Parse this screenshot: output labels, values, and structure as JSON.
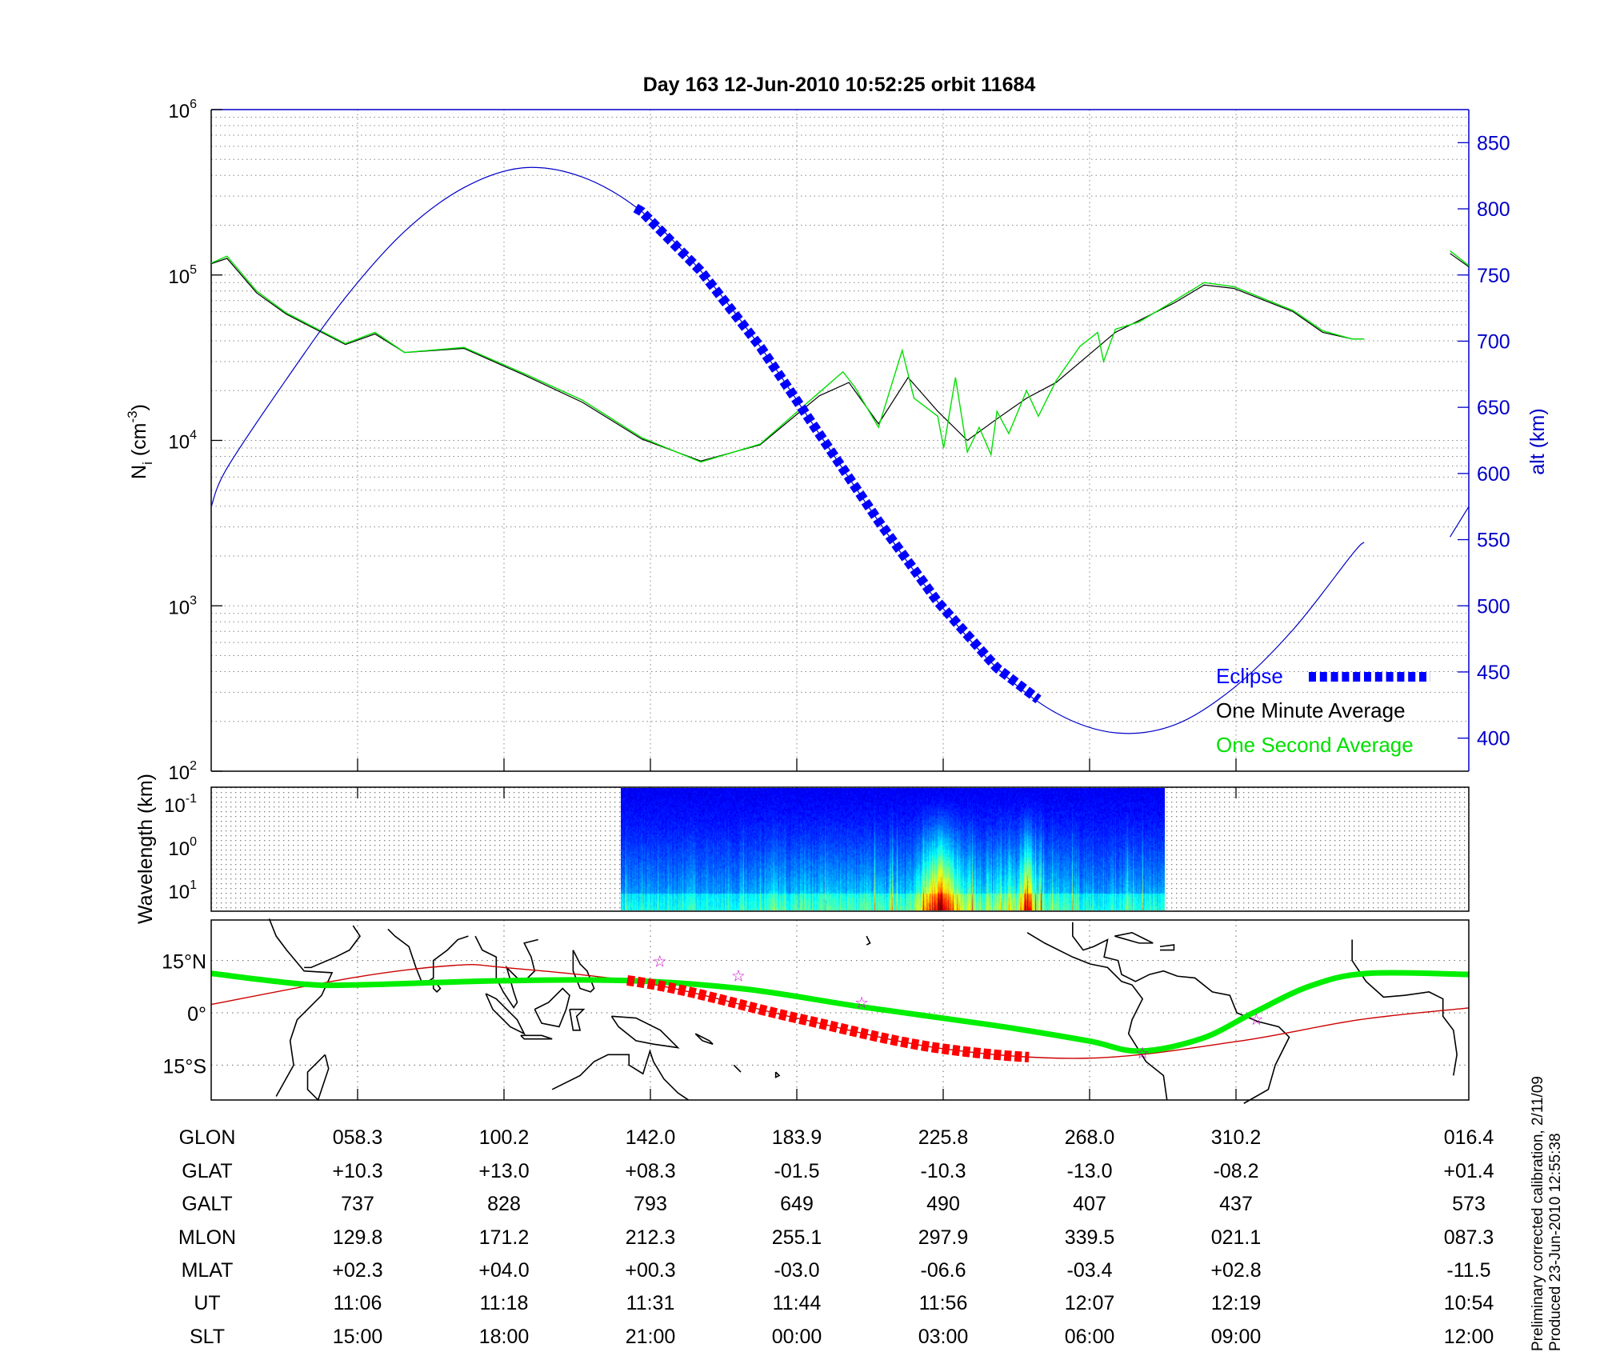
{
  "title": "Day 163  12-Jun-2010 10:52:25   orbit 11684",
  "colors": {
    "altitude": "#0000c8",
    "eclipse": "#0000ff",
    "one_minute": "#000000",
    "one_second": "#00e000",
    "dip_equator": "#00ee00",
    "track": "#cc0000",
    "track_eclipse": "#ff0000",
    "stars": "#cc00cc",
    "alt_axis": "#0000c8"
  },
  "chart_data": [
    {
      "type": "line",
      "title": "Day 163  12-Jun-2010 10:52:25   orbit 11684",
      "x_unit": "UT",
      "x_range": [
        "10:53:40",
        "12:39:50"
      ],
      "ylabel": "N_i (cm^-3)",
      "ylabel_main": "N",
      "ylabel_sub": "i",
      "ylabel_rest": " (cm",
      "ylabel_sup": "-3",
      "ylabel_close": ")",
      "yscale": "log",
      "ylim": [
        100,
        1000000
      ],
      "yticks": [
        {
          "base": "10",
          "exp": "2"
        },
        {
          "base": "10",
          "exp": "3"
        },
        {
          "base": "10",
          "exp": "4"
        },
        {
          "base": "10",
          "exp": "5"
        },
        {
          "base": "10",
          "exp": "6"
        }
      ],
      "y2label": "alt (km)",
      "y2lim": [
        375,
        875
      ],
      "y2ticks": [
        "400",
        "450",
        "500",
        "550",
        "600",
        "650",
        "700",
        "750",
        "800",
        "850"
      ],
      "grid": true,
      "legend_placement": "bottom-right",
      "legend": [
        {
          "label": "Eclipse",
          "color": "#0000ff"
        },
        {
          "label": "One Minute Average",
          "color": "#000000"
        },
        {
          "label": "One Second Average",
          "color": "#00e000"
        }
      ],
      "series": [
        {
          "name": "One Minute Average",
          "axis": "left",
          "segments": [
            [
              [
                "10:53:40",
                117000
              ],
              [
                "10:55:00",
                126000
              ],
              [
                "10:57:30",
                78000
              ],
              [
                "11:00:00",
                58000
              ],
              [
                "11:05:00",
                38000
              ],
              [
                "11:07:30",
                44000
              ],
              [
                "11:10:00",
                34000
              ],
              [
                "11:15:00",
                36000
              ],
              [
                "11:20:00",
                25000
              ],
              [
                "11:25:00",
                17000
              ],
              [
                "11:30:00",
                10200
              ],
              [
                "11:35:00",
                7500
              ],
              [
                "11:40:00",
                9400
              ],
              [
                "11:45:00",
                18600
              ],
              [
                "11:47:30",
                22400
              ],
              [
                "11:50:00",
                12600
              ],
              [
                "11:52:30",
                24000
              ],
              [
                "11:55:00",
                15000
              ],
              [
                "11:57:30",
                10000
              ],
              [
                "12:00:00",
                13500
              ],
              [
                "12:02:30",
                18000
              ],
              [
                "12:05:00",
                22400
              ],
              [
                "12:10:00",
                45000
              ],
              [
                "12:15:00",
                68000
              ],
              [
                "12:17:30",
                87000
              ],
              [
                "12:20:00",
                83000
              ],
              [
                "12:25:00",
                60000
              ],
              [
                "12:27:30",
                45000
              ],
              [
                "12:30:00",
                41000
              ],
              [
                "12:31:00",
                41000
              ]
            ],
            [
              [
                "12:38:15",
                135000
              ],
              [
                "12:39:50",
                112000
              ]
            ]
          ]
        },
        {
          "name": "One Second Average",
          "axis": "left",
          "segments": [
            [
              [
                "10:53:40",
                118000
              ],
              [
                "10:55:00",
                130000
              ],
              [
                "10:57:30",
                80000
              ],
              [
                "11:00:00",
                59000
              ],
              [
                "11:05:00",
                38500
              ],
              [
                "11:07:30",
                45000
              ],
              [
                "11:10:00",
                34000
              ],
              [
                "11:15:00",
                36500
              ],
              [
                "11:20:00",
                25500
              ],
              [
                "11:25:00",
                17500
              ],
              [
                "11:30:00",
                10400
              ],
              [
                "11:35:00",
                7400
              ],
              [
                "11:40:00",
                9500
              ],
              [
                "11:45:00",
                19500
              ],
              [
                "11:47:00",
                26000
              ],
              [
                "11:48:00",
                21000
              ],
              [
                "11:50:00",
                12000
              ],
              [
                "11:52:00",
                35000
              ],
              [
                "11:53:00",
                18000
              ],
              [
                "11:55:00",
                14000
              ],
              [
                "11:55:30",
                9000
              ],
              [
                "11:56:30",
                24000
              ],
              [
                "11:57:30",
                8500
              ],
              [
                "11:58:30",
                12000
              ],
              [
                "11:59:30",
                8200
              ],
              [
                "12:00:00",
                15000
              ],
              [
                "12:01:00",
                11000
              ],
              [
                "12:02:30",
                20000
              ],
              [
                "12:03:30",
                14000
              ],
              [
                "12:05:00",
                23000
              ],
              [
                "12:07:00",
                37000
              ],
              [
                "12:08:30",
                45000
              ],
              [
                "12:09:00",
                30000
              ],
              [
                "12:10:00",
                47000
              ],
              [
                "12:12:00",
                52000
              ],
              [
                "12:15:00",
                70000
              ],
              [
                "12:17:30",
                90000
              ],
              [
                "12:20:00",
                85000
              ],
              [
                "12:25:00",
                61000
              ],
              [
                "12:27:30",
                46000
              ],
              [
                "12:30:00",
                41000
              ],
              [
                "12:31:00",
                41000
              ]
            ],
            [
              [
                "12:38:15",
                140000
              ],
              [
                "12:39:50",
                114000
              ]
            ]
          ]
        },
        {
          "name": "alt (km)",
          "axis": "right",
          "segments": [
            [
              [
                "10:53:40",
                575
              ],
              [
                "10:55:00",
                604
              ],
              [
                "11:00:00",
                671
              ],
              [
                "11:05:00",
                733
              ],
              [
                "11:10:00",
                783
              ],
              [
                "11:15:00",
                816
              ],
              [
                "11:20:00",
                831
              ],
              [
                "11:25:00",
                824
              ],
              [
                "11:30:00",
                798
              ],
              [
                "11:35:00",
                753
              ],
              [
                "11:40:00",
                696
              ],
              [
                "11:45:00",
                630
              ],
              [
                "11:50:00",
                564
              ],
              [
                "11:55:00",
                503
              ],
              [
                "12:00:00",
                453
              ],
              [
                "12:05:00",
                419
              ],
              [
                "12:10:00",
                404
              ],
              [
                "12:15:00",
                410
              ],
              [
                "12:20:00",
                438
              ],
              [
                "12:25:00",
                482
              ],
              [
                "12:30:00",
                539
              ],
              [
                "12:31:00",
                548
              ]
            ],
            [
              [
                "12:38:15",
                552
              ],
              [
                "12:39:50",
                575
              ]
            ]
          ]
        }
      ],
      "eclipse": {
        "start": "11:29:30",
        "end": "12:03:30"
      }
    },
    {
      "type": "heatmap",
      "ylabel": "Wavelength (km)",
      "yscale": "log",
      "y_inverted": true,
      "yticks": [
        {
          "base": "10",
          "exp": "-1"
        },
        {
          "base": "10",
          "exp": "0"
        },
        {
          "base": "10",
          "exp": "1"
        }
      ],
      "x_range": [
        "11:28:16",
        "12:14:10"
      ],
      "colormap": "jet",
      "peak_activity": [
        "11:53:00",
        "12:04:00"
      ]
    },
    {
      "type": "map",
      "ylabel_ticks": [
        "15°N",
        "0°",
        "15°S"
      ],
      "lon_range": [
        16.4,
        376.4
      ],
      "lat_range": [
        -25,
        26.6
      ],
      "satellite_track": [
        [
          16.4,
          2.4
        ],
        [
          58.3,
          10.3
        ],
        [
          86,
          13.6
        ],
        [
          100.2,
          13.0
        ],
        [
          142.0,
          8.3
        ],
        [
          183.9,
          -1.5
        ],
        [
          225.8,
          -10.3
        ],
        [
          268.0,
          -13.0
        ],
        [
          310.2,
          -8.2
        ],
        [
          345,
          -2
        ],
        [
          376.4,
          1.4
        ]
      ],
      "dip_equator": [
        [
          16.4,
          11.3
        ],
        [
          41.9,
          8.3
        ],
        [
          58.2,
          8.0
        ],
        [
          100,
          9.2
        ],
        [
          136.8,
          9.2
        ],
        [
          169.4,
          6.8
        ],
        [
          202,
          1.8
        ],
        [
          240.5,
          -3.6
        ],
        [
          267.2,
          -8.0
        ],
        [
          282.1,
          -11.0
        ],
        [
          299.9,
          -7.4
        ],
        [
          314.7,
          0
        ],
        [
          331,
          7.7
        ],
        [
          347.3,
          11.3
        ],
        [
          376.4,
          11.0
        ]
      ],
      "eclipse_lon": [
        135,
        251
      ],
      "stars": [
        [
          144.8,
          14.8
        ],
        [
          167.3,
          10.7
        ],
        [
          202.6,
          3.0
        ],
        [
          283,
          -11.5
        ],
        [
          315.6,
          -1.8
        ]
      ]
    }
  ],
  "table": {
    "rows": [
      {
        "label": "GLON",
        "values": [
          "058.3",
          "100.2",
          "142.0",
          "183.9",
          "225.8",
          "268.0",
          "310.2",
          "016.4"
        ]
      },
      {
        "label": "GLAT",
        "values": [
          "+10.3",
          "+13.0",
          "+08.3",
          "-01.5",
          "-10.3",
          "-13.0",
          "-08.2",
          "+01.4"
        ]
      },
      {
        "label": "GALT",
        "values": [
          "737",
          "828",
          "793",
          "649",
          "490",
          "407",
          "437",
          "573"
        ]
      },
      {
        "label": "MLON",
        "values": [
          "129.8",
          "171.2",
          "212.3",
          "255.1",
          "297.9",
          "339.5",
          "021.1",
          "087.3"
        ]
      },
      {
        "label": "MLAT",
        "values": [
          "+02.3",
          "+04.0",
          "+00.3",
          "-03.0",
          "-06.6",
          "-03.4",
          "+02.8",
          "-11.5"
        ]
      },
      {
        "label": "UT",
        "values": [
          "11:06",
          "11:18",
          "11:31",
          "11:44",
          "11:56",
          "12:07",
          "12:19",
          "10:54"
        ]
      },
      {
        "label": "SLT",
        "values": [
          "15:00",
          "18:00",
          "21:00",
          "00:00",
          "03:00",
          "06:00",
          "09:00",
          "12:00"
        ]
      }
    ]
  },
  "footer": {
    "line1": "Preliminary corrected calibration, 2/11/09",
    "line2": "Produced 23-Jun-2010 12:55:38"
  }
}
